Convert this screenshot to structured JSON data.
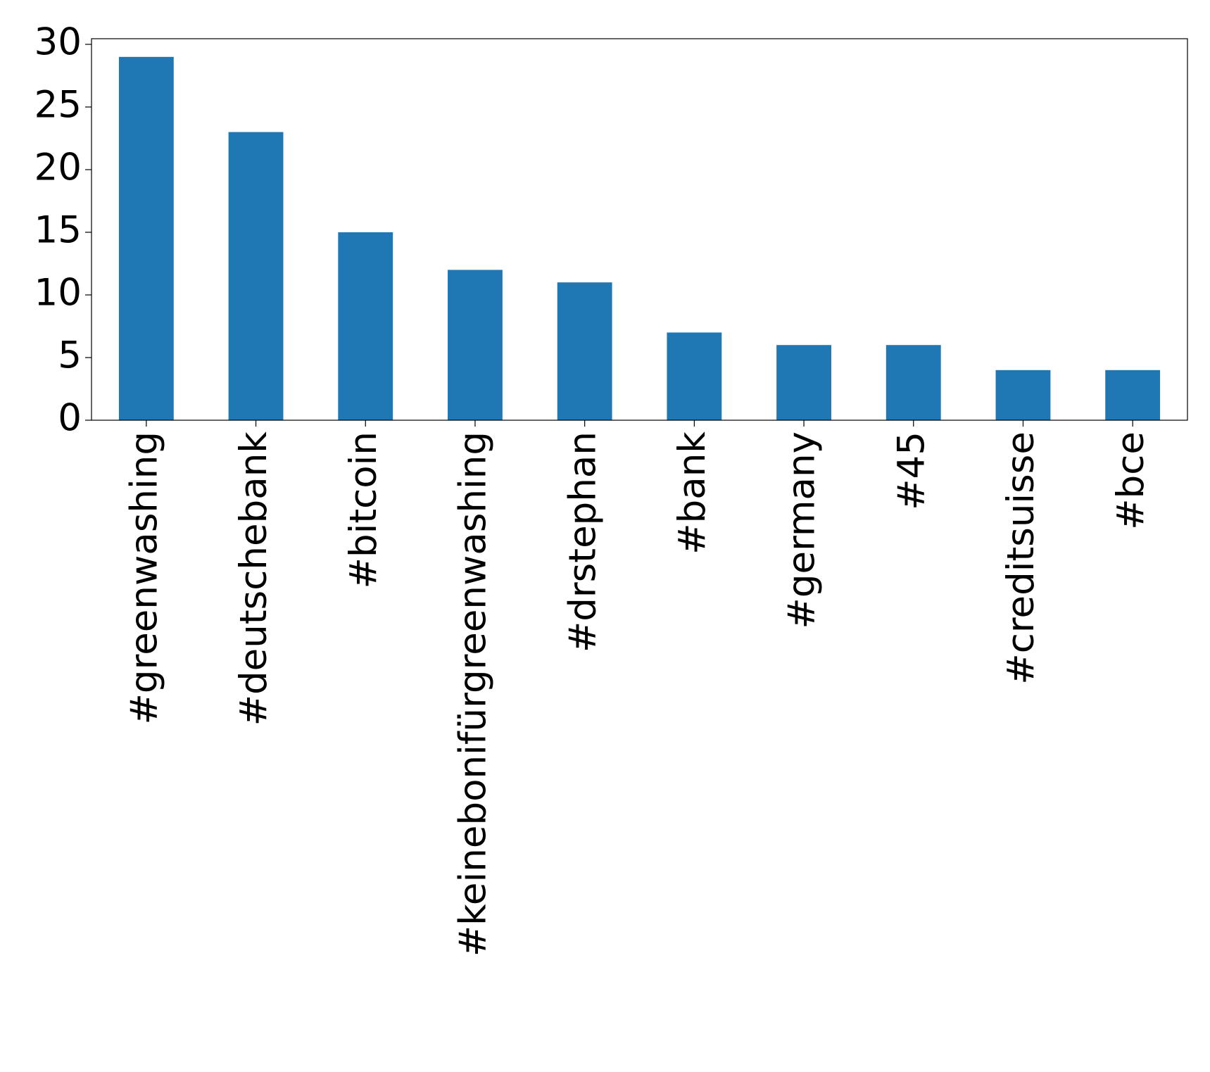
{
  "chart_data": {
    "type": "bar",
    "categories": [
      "#greenwashing",
      "#deutschebank",
      "#bitcoin",
      "#keinebonifürgreenwashing",
      "#drstephan",
      "#bank",
      "#germany",
      "#45",
      "#creditsuisse",
      "#bce"
    ],
    "values": [
      29,
      23,
      15,
      12,
      11,
      7,
      6,
      6,
      4,
      4
    ],
    "color": "#1f77b4",
    "ylim": [
      0,
      30.45
    ],
    "yticks": [
      0,
      5,
      10,
      15,
      20,
      25,
      30
    ],
    "grid": false
  }
}
